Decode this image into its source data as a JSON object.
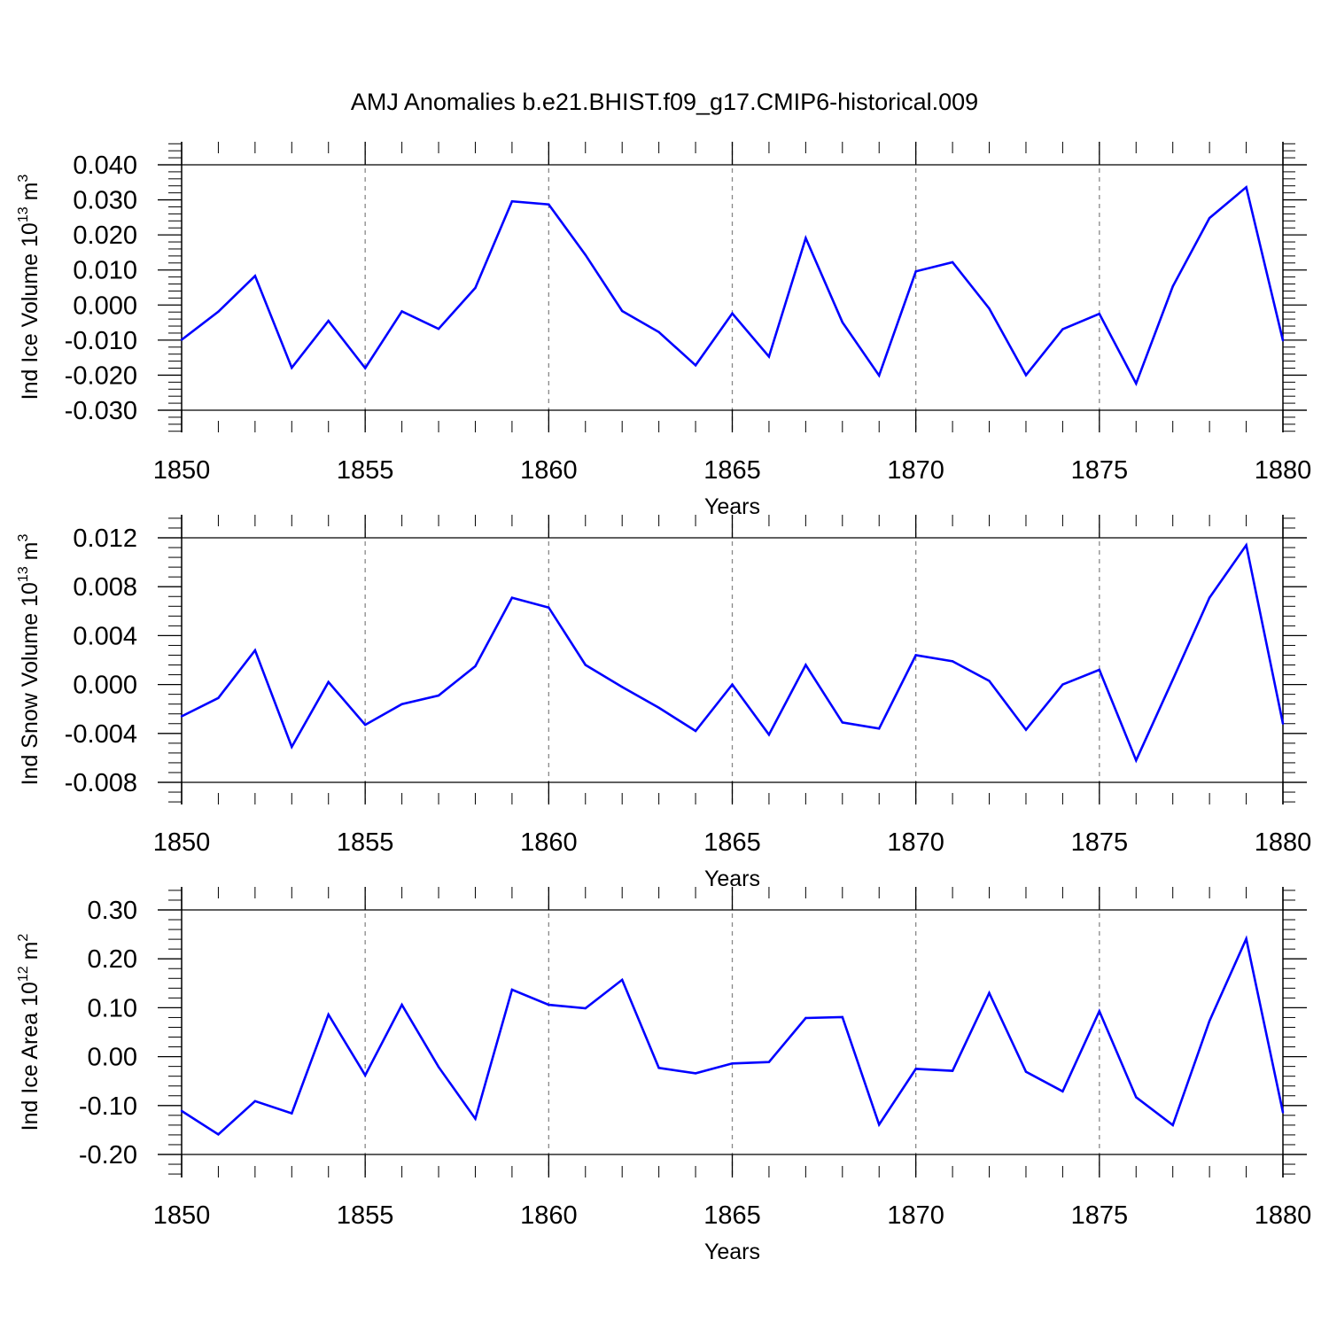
{
  "title": "AMJ Anomalies b.e21.BHIST.f09_g17.CMIP6-historical.009",
  "colors": {
    "line": "#0000ff",
    "axis": "#000000",
    "grid": "#888888",
    "background": "#ffffff"
  },
  "chart_data": [
    {
      "type": "line",
      "xlabel": "Years",
      "ylabel": {
        "text": "Ind Ice Volume 10",
        "exp": "13",
        "unit": "m",
        "unit_exp": "3"
      },
      "xlim": [
        1850,
        1880
      ],
      "ylim": [
        -0.03,
        0.04
      ],
      "xticks": [
        "1850",
        "1855",
        "1860",
        "1865",
        "1870",
        "1875",
        "1880"
      ],
      "yticks": [
        "0.040",
        "0.030",
        "0.020",
        "0.010",
        "0.000",
        "-0.010",
        "-0.020",
        "-0.030"
      ],
      "x_vertical_dashed_grid": [
        1855,
        1860,
        1865,
        1870,
        1875
      ],
      "x": [
        1850,
        1851,
        1852,
        1853,
        1854,
        1855,
        1856,
        1857,
        1858,
        1859,
        1860,
        1861,
        1862,
        1863,
        1864,
        1865,
        1866,
        1867,
        1868,
        1869,
        1870,
        1871,
        1872,
        1873,
        1874,
        1875,
        1876,
        1877,
        1878,
        1879,
        1880
      ],
      "values": [
        -0.0099,
        -0.0019,
        0.0083,
        -0.0179,
        -0.0045,
        -0.018,
        -0.0018,
        -0.0068,
        0.0049,
        0.0296,
        0.0287,
        0.0143,
        -0.0017,
        -0.0077,
        -0.0172,
        -0.0024,
        -0.0147,
        0.0191,
        -0.0049,
        -0.0201,
        0.0096,
        0.0122,
        -0.001,
        -0.02,
        -0.0069,
        -0.0025,
        -0.0224,
        0.0053,
        0.0248,
        0.0336,
        -0.0101
      ]
    },
    {
      "type": "line",
      "xlabel": "Years",
      "ylabel": {
        "text": "Ind Snow Volume 10",
        "exp": "13",
        "unit": "m",
        "unit_exp": "3"
      },
      "xlim": [
        1850,
        1880
      ],
      "ylim": [
        -0.009,
        0.013
      ],
      "xticks": [
        "1850",
        "1855",
        "1860",
        "1865",
        "1870",
        "1875",
        "1880"
      ],
      "yticks": [
        "0.012",
        "0.008",
        "0.004",
        "0.000",
        "-0.004",
        "-0.008"
      ],
      "x_vertical_dashed_grid": [
        1855,
        1860,
        1865,
        1870,
        1875
      ],
      "x": [
        1850,
        1851,
        1852,
        1853,
        1854,
        1855,
        1856,
        1857,
        1858,
        1859,
        1860,
        1861,
        1862,
        1863,
        1864,
        1865,
        1866,
        1867,
        1868,
        1869,
        1870,
        1871,
        1872,
        1873,
        1874,
        1875,
        1876,
        1877,
        1878,
        1879,
        1880
      ],
      "values": [
        -0.0026,
        -0.0011,
        0.0028,
        -0.0051,
        0.0002,
        -0.0033,
        -0.0016,
        -0.0009,
        0.0015,
        0.0071,
        0.0063,
        0.0016,
        -0.0002,
        -0.0019,
        -0.0038,
        0.0,
        -0.0041,
        0.0016,
        -0.0031,
        -0.0036,
        0.0024,
        0.0019,
        0.0003,
        -0.0037,
        0.0,
        0.0012,
        -0.0062,
        0.0004,
        0.0071,
        0.0114,
        -0.0032
      ]
    },
    {
      "type": "line",
      "xlabel": "Years",
      "ylabel": {
        "text": "Ind Ice Area 10",
        "exp": "12",
        "unit": "m",
        "unit_exp": "2"
      },
      "xlim": [
        1850,
        1880
      ],
      "ylim": [
        -0.2,
        0.3
      ],
      "xticks": [
        "1850",
        "1855",
        "1860",
        "1865",
        "1870",
        "1875",
        "1880"
      ],
      "yticks": [
        "0.30",
        "0.20",
        "0.10",
        "0.00",
        "-0.10",
        "-0.20"
      ],
      "x_vertical_dashed_grid": [
        1855,
        1860,
        1865,
        1870,
        1875
      ],
      "x": [
        1850,
        1851,
        1852,
        1853,
        1854,
        1855,
        1856,
        1857,
        1858,
        1859,
        1860,
        1861,
        1862,
        1863,
        1864,
        1865,
        1866,
        1867,
        1868,
        1869,
        1870,
        1871,
        1872,
        1873,
        1874,
        1875,
        1876,
        1877,
        1878,
        1879,
        1880
      ],
      "values": [
        -0.111,
        -0.159,
        -0.091,
        -0.116,
        0.086,
        -0.038,
        0.106,
        -0.021,
        -0.127,
        0.137,
        0.106,
        0.099,
        0.157,
        -0.023,
        -0.034,
        -0.014,
        -0.011,
        0.079,
        0.081,
        -0.139,
        -0.025,
        -0.029,
        0.13,
        -0.031,
        -0.071,
        0.093,
        -0.083,
        -0.14,
        0.073,
        0.241,
        -0.114
      ]
    }
  ]
}
